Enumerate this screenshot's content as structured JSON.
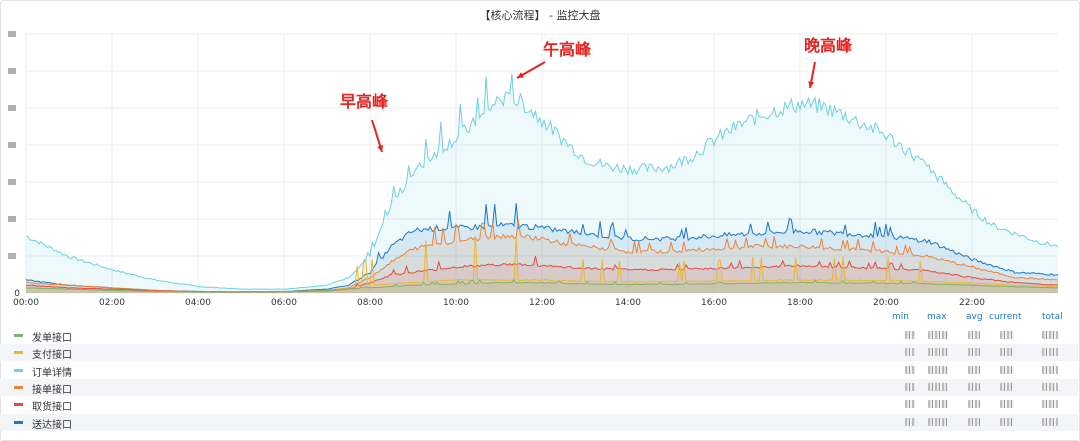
{
  "chart_data": {
    "type": "area",
    "title": "【核心流程】 - 监控大盘",
    "x_ticks": [
      "00:00",
      "02:00",
      "04:00",
      "06:00",
      "08:00",
      "10:00",
      "12:00",
      "14:00",
      "16:00",
      "18:00",
      "20:00",
      "22:00"
    ],
    "x_range": [
      0,
      24
    ],
    "y_range": [
      0,
      100
    ],
    "y_tick_labels": [
      "0"
    ],
    "grid": true,
    "legend_placement": "bottom",
    "legend_columns": [
      "min",
      "max",
      "avg",
      "current",
      "total"
    ],
    "annotations": [
      {
        "text": "早高峰",
        "x": 8.3,
        "y": 58
      },
      {
        "text": "午高峰",
        "x": 11.2,
        "y": 84
      },
      {
        "text": "晚高峰",
        "x": 18.0,
        "y": 82
      }
    ],
    "series": [
      {
        "name": "发单接口",
        "color": "#7eb26d",
        "x": [
          0,
          1,
          2,
          3,
          4,
          5,
          6,
          7,
          8,
          9,
          10,
          11,
          12,
          13,
          14,
          15,
          16,
          17,
          18,
          19,
          20,
          21,
          22,
          23,
          24
        ],
        "values": [
          2,
          1.5,
          1,
          0.6,
          0.4,
          0.4,
          0.5,
          1,
          2,
          3,
          3.5,
          4,
          4,
          3.5,
          3.3,
          3.4,
          3.6,
          3.8,
          4,
          3.9,
          3.8,
          3.6,
          3,
          2.4,
          2
        ]
      },
      {
        "name": "支付接口",
        "color": "#eab839",
        "x": [
          0,
          1,
          2,
          3,
          4,
          5,
          6,
          7,
          8,
          9,
          10,
          11,
          12,
          13,
          14,
          15,
          16,
          17,
          18,
          19,
          20,
          21,
          22,
          23,
          24
        ],
        "values": [
          2,
          1.5,
          1,
          0.6,
          0.4,
          0.4,
          0.5,
          1,
          3,
          4,
          5,
          5,
          5,
          4.5,
          4.3,
          4.4,
          4.6,
          4.8,
          5,
          4.9,
          4.8,
          4.5,
          3.8,
          3,
          2.5
        ]
      },
      {
        "name": "订单详情",
        "color": "#6ed0e0",
        "x": [
          0,
          0.5,
          1,
          2,
          3,
          4,
          5,
          6,
          7,
          7.5,
          8,
          8.5,
          9,
          9.5,
          10,
          10.5,
          11,
          11.5,
          12,
          12.5,
          13,
          13.5,
          14,
          14.5,
          15,
          15.5,
          16,
          16.5,
          17,
          17.5,
          18,
          18.5,
          19,
          19.5,
          20,
          20.5,
          21,
          21.5,
          22,
          22.5,
          23,
          23.5,
          24
        ],
        "values": [
          22,
          18,
          14,
          9,
          5,
          2.5,
          1.5,
          1.5,
          3,
          6,
          14,
          34,
          46,
          54,
          60,
          66,
          75,
          74,
          67,
          59,
          52,
          49,
          48,
          48,
          49,
          53,
          59,
          64,
          68,
          71,
          73,
          72,
          69,
          65,
          61,
          55,
          48,
          40,
          32,
          26,
          23,
          20,
          18
        ]
      },
      {
        "name": "接单接口",
        "color": "#ef843c",
        "x": [
          0,
          1,
          2,
          3,
          4,
          5,
          6,
          7,
          7.5,
          8,
          8.5,
          9,
          9.5,
          10,
          10.5,
          11,
          11.5,
          12,
          12.5,
          13,
          14,
          15,
          16,
          17,
          18,
          19,
          20,
          21,
          22,
          23,
          24
        ],
        "values": [
          4,
          3,
          2,
          1,
          0.5,
          0.4,
          0.5,
          1,
          2,
          6,
          12,
          17,
          19,
          20,
          21,
          22,
          22,
          21,
          19,
          18,
          16,
          16,
          17,
          18,
          18,
          17,
          16,
          14,
          10,
          6,
          5
        ]
      },
      {
        "name": "取货接口",
        "color": "#e24d42",
        "x": [
          0,
          1,
          2,
          3,
          4,
          5,
          6,
          7,
          7.5,
          8,
          8.5,
          9,
          9.5,
          10,
          10.5,
          11,
          11.5,
          12,
          13,
          14,
          15,
          16,
          17,
          18,
          19,
          20,
          21,
          22,
          23,
          24
        ],
        "values": [
          3,
          2,
          1.5,
          0.8,
          0.4,
          0.3,
          0.4,
          0.8,
          1.5,
          4,
          7,
          8,
          9,
          10,
          10.5,
          11,
          11,
          10.5,
          9.5,
          9,
          9,
          9.5,
          10,
          10.5,
          10,
          9.5,
          8.5,
          6,
          4,
          3
        ]
      },
      {
        "name": "送达接口",
        "color": "#1f78c1",
        "x": [
          0,
          1,
          2,
          3,
          4,
          5,
          6,
          7,
          7.5,
          8,
          8.5,
          9,
          9.5,
          10,
          10.5,
          11,
          11.5,
          12,
          12.5,
          13,
          14,
          15,
          16,
          17,
          18,
          19,
          20,
          21,
          22,
          23,
          24
        ],
        "values": [
          5,
          3,
          2,
          1,
          0.6,
          0.5,
          0.6,
          1.5,
          3,
          8,
          18,
          24,
          25,
          25,
          25.5,
          26,
          26,
          25,
          24,
          23,
          21,
          21,
          22,
          23,
          24,
          23,
          22,
          20,
          13,
          8,
          7
        ]
      }
    ]
  }
}
